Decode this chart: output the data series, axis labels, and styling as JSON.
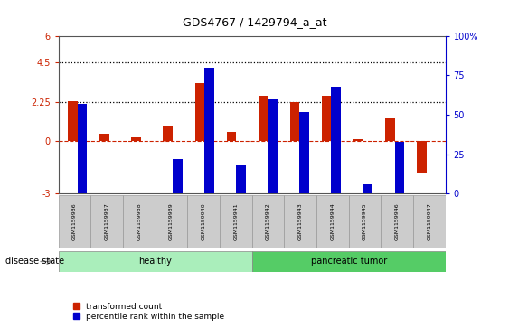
{
  "title": "GDS4767 / 1429794_a_at",
  "samples": [
    "GSM1159936",
    "GSM1159937",
    "GSM1159938",
    "GSM1159939",
    "GSM1159940",
    "GSM1159941",
    "GSM1159942",
    "GSM1159943",
    "GSM1159944",
    "GSM1159945",
    "GSM1159946",
    "GSM1159947"
  ],
  "transformed_count": [
    2.3,
    0.4,
    0.2,
    0.9,
    3.3,
    0.5,
    2.6,
    2.2,
    2.6,
    0.1,
    1.3,
    -1.8
  ],
  "percentile_rank": [
    57,
    -5,
    -10,
    22,
    80,
    18,
    60,
    52,
    68,
    6,
    33,
    -5
  ],
  "percentile_scale": 6.0,
  "percentile_max": 100,
  "ylim_left": [
    -3,
    6
  ],
  "ylim_right": [
    0,
    100
  ],
  "yticks_left": [
    -3,
    0,
    2.25,
    4.5,
    6
  ],
  "ytick_labels_left": [
    "-3",
    "0",
    "2.25",
    "4.5",
    "6"
  ],
  "yticks_right": [
    0,
    25,
    50,
    75,
    100
  ],
  "ytick_labels_right": [
    "0",
    "25",
    "50",
    "75",
    "100%"
  ],
  "hlines": [
    2.25,
    4.5
  ],
  "bar_color_red": "#cc2200",
  "bar_color_blue": "#0000cc",
  "zero_line_color": "#cc2200",
  "dotted_line_color": "#000000",
  "healthy_count": 6,
  "tumor_count": 6,
  "group_label_healthy": "healthy",
  "group_label_tumor": "pancreatic tumor",
  "group_color_healthy": "#aaeebb",
  "group_color_tumor": "#55cc66",
  "disease_state_label": "disease state",
  "legend_red_label": "transformed count",
  "legend_blue_label": "percentile rank within the sample",
  "bar_width": 0.3,
  "bg_color": "#ffffff",
  "tick_label_area_color": "#cccccc",
  "tick_label_area_border": "#999999"
}
